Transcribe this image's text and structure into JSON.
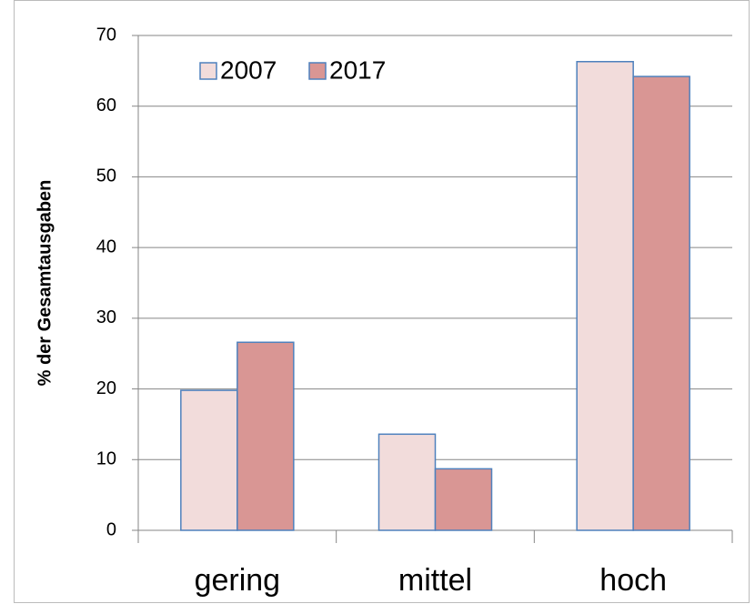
{
  "chart_data": {
    "type": "bar",
    "y_label": "% der Gesamtausgaben",
    "categories": [
      "gering",
      "mittel",
      "hoch"
    ],
    "series": [
      {
        "name": "2007",
        "color": "#f2dcdb",
        "values": [
          19.8,
          13.6,
          66.3
        ]
      },
      {
        "name": "2017",
        "color": "#d99694",
        "values": [
          26.6,
          8.7,
          64.2
        ]
      }
    ],
    "edge_color": "#4f81bd",
    "ylim": [
      0,
      70
    ],
    "yticks": [
      0,
      10,
      20,
      30,
      40,
      50,
      60,
      70
    ],
    "grid": true,
    "legend": "top-left"
  }
}
